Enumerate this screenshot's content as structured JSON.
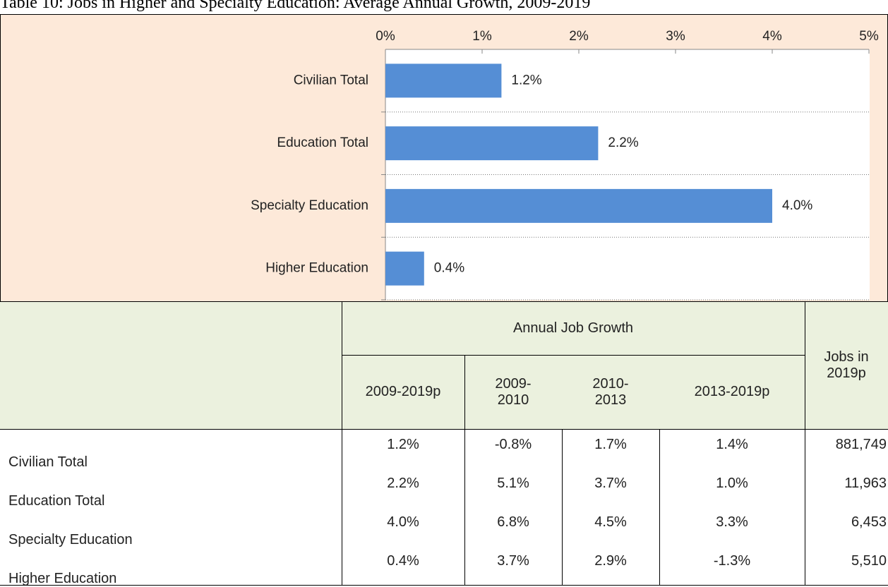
{
  "title": "Table 10: Jobs in Higher and Specialty Education: Average Annual Growth, 2009-2019",
  "chart_data": {
    "type": "bar",
    "orientation": "horizontal",
    "categories": [
      "Civilian Total",
      "Education Total",
      "Specialty Education",
      "Higher Education"
    ],
    "values": [
      1.2,
      2.2,
      4.0,
      0.4
    ],
    "value_labels": [
      "1.2%",
      "2.2%",
      "4.0%",
      "0.4%"
    ],
    "color": "#558ed5",
    "xlim": [
      0,
      5
    ],
    "xticks": [
      {
        "value": 0,
        "label": "0%"
      },
      {
        "value": 1,
        "label": "1%"
      },
      {
        "value": 2,
        "label": "2%"
      },
      {
        "value": 3,
        "label": "3%"
      },
      {
        "value": 4,
        "label": "4%"
      },
      {
        "value": 5,
        "label": "5%"
      }
    ],
    "grid": true
  },
  "table": {
    "group_header": "Annual Job Growth",
    "columns": [
      "2009-2019p",
      "2009-2010",
      "2010-2013",
      "2013-2019p",
      "Jobs in 2019p"
    ],
    "rows": [
      [
        "Civilian Total",
        "1.2%",
        "-0.8%",
        "1.7%",
        "1.4%",
        "881,749"
      ],
      [
        "Education Total",
        "2.2%",
        "5.1%",
        "3.7%",
        "1.0%",
        "11,963"
      ],
      [
        "Specialty Education",
        "4.0%",
        "6.8%",
        "4.5%",
        "3.3%",
        "6,453"
      ],
      [
        "Higher Education",
        "0.4%",
        "3.7%",
        "2.9%",
        "-1.3%",
        "5,510"
      ]
    ]
  }
}
